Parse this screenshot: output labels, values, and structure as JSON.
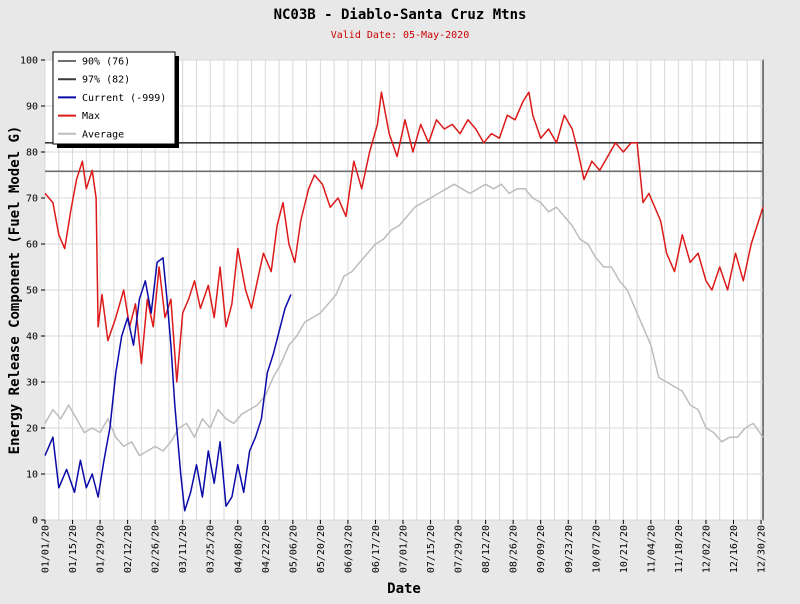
{
  "chart_data": {
    "type": "line",
    "title": "NC03B - Diablo-Santa Cruz Mtns",
    "subtitle": "Valid Date: 05-May-2020",
    "xlabel": "Date",
    "ylabel": "Energy Release Component (Fuel Model G)",
    "ylim": [
      0,
      100
    ],
    "yticks": [
      0,
      10,
      20,
      30,
      40,
      50,
      60,
      70,
      80,
      90,
      100
    ],
    "xlim": [
      "01/01/20",
      "12/31/20"
    ],
    "xticks": [
      "01/01/20",
      "01/15/20",
      "01/29/20",
      "02/12/20",
      "02/26/20",
      "03/11/20",
      "03/25/20",
      "04/08/20",
      "04/22/20",
      "05/06/20",
      "05/20/20",
      "06/03/20",
      "06/17/20",
      "07/01/20",
      "07/15/20",
      "07/29/20",
      "08/12/20",
      "08/26/20",
      "09/09/20",
      "09/23/20",
      "10/07/20",
      "10/21/20",
      "11/04/20",
      "11/18/20",
      "12/02/20",
      "12/16/20",
      "12/30/20"
    ],
    "grid": true,
    "legend_position": "top-left",
    "colors": {
      "background": "#e8e8e8",
      "plot_background": "#ffffff",
      "grid": "#d8d8d8",
      "title": "#000000",
      "subtitle": "#cc0000",
      "p90": "#6e6e6e",
      "p97": "#3a3a3a",
      "current": "#0a0aa8",
      "max": "#dd1a1a",
      "average": "#bdbdbd"
    },
    "series": [
      {
        "name": "90% (76)",
        "kind": "hline",
        "y": 75.8
      },
      {
        "name": "97% (82)",
        "kind": "hline",
        "y": 82
      },
      {
        "name": "Current (-999)",
        "kind": "line",
        "x": [
          "01/01/20",
          "01/05/20",
          "01/08/20",
          "01/12/20",
          "01/16/20",
          "01/19/20",
          "01/22/20",
          "01/25/20",
          "01/28/20",
          "01/31/20",
          "02/03/20",
          "02/06/20",
          "02/09/20",
          "02/12/20",
          "02/15/20",
          "02/18/20",
          "02/21/20",
          "02/24/20",
          "02/27/20",
          "03/01/20",
          "03/03/20",
          "03/05/20",
          "03/07/20",
          "03/10/20",
          "03/12/20",
          "03/15/20",
          "03/18/20",
          "03/21/20",
          "03/24/20",
          "03/27/20",
          "03/30/20",
          "04/02/20",
          "04/05/20",
          "04/08/20",
          "04/11/20",
          "04/14/20",
          "04/17/20",
          "04/20/20",
          "04/23/20",
          "04/26/20",
          "04/29/20",
          "05/02/20",
          "05/05/20"
        ],
        "values": [
          14,
          18,
          7,
          11,
          6,
          13,
          7,
          10,
          5,
          13,
          20,
          32,
          40,
          44,
          38,
          48,
          52,
          45,
          56,
          57,
          48,
          38,
          25,
          10,
          2,
          6,
          12,
          5,
          15,
          8,
          17,
          3,
          5,
          12,
          6,
          15,
          18,
          22,
          32,
          36,
          41,
          46,
          49
        ]
      },
      {
        "name": "Max",
        "kind": "line",
        "x": [
          "01/01/20",
          "01/05/20",
          "01/08/20",
          "01/11/20",
          "01/14/20",
          "01/17/20",
          "01/20/20",
          "01/22/20",
          "01/25/20",
          "01/27/20",
          "01/28/20",
          "01/30/20",
          "02/02/20",
          "02/06/20",
          "02/10/20",
          "02/13/20",
          "02/16/20",
          "02/19/20",
          "02/22/20",
          "02/25/20",
          "02/28/20",
          "03/02/20",
          "03/05/20",
          "03/08/20",
          "03/11/20",
          "03/14/20",
          "03/17/20",
          "03/20/20",
          "03/24/20",
          "03/27/20",
          "03/30/20",
          "04/02/20",
          "04/05/20",
          "04/08/20",
          "04/12/20",
          "04/15/20",
          "04/18/20",
          "04/21/20",
          "04/25/20",
          "04/28/20",
          "05/01/20",
          "05/04/20",
          "05/07/20",
          "05/10/20",
          "05/14/20",
          "05/17/20",
          "05/21/20",
          "05/25/20",
          "05/29/20",
          "06/02/20",
          "06/06/20",
          "06/10/20",
          "06/14/20",
          "06/18/20",
          "06/20/20",
          "06/24/20",
          "06/28/20",
          "07/02/20",
          "07/06/20",
          "07/10/20",
          "07/14/20",
          "07/18/20",
          "07/22/20",
          "07/26/20",
          "07/30/20",
          "08/03/20",
          "08/07/20",
          "08/11/20",
          "08/15/20",
          "08/19/20",
          "08/23/20",
          "08/27/20",
          "08/31/20",
          "09/03/20",
          "09/05/20",
          "09/09/20",
          "09/13/20",
          "09/17/20",
          "09/21/20",
          "09/25/20",
          "09/28/20",
          "10/01/20",
          "10/05/20",
          "10/09/20",
          "10/13/20",
          "10/17/20",
          "10/21/20",
          "10/25/20",
          "10/28/20",
          "10/31/20",
          "11/03/20",
          "11/06/20",
          "11/09/20",
          "11/12/20",
          "11/16/20",
          "11/20/20",
          "11/24/20",
          "11/28/20",
          "12/02/20",
          "12/05/20",
          "12/09/20",
          "12/13/20",
          "12/17/20",
          "12/21/20",
          "12/25/20",
          "12/28/20",
          "12/31/20"
        ],
        "values": [
          71,
          69,
          62,
          59,
          67,
          74,
          78,
          72,
          76,
          70,
          42,
          49,
          39,
          44,
          50,
          42,
          47,
          34,
          48,
          42,
          55,
          44,
          48,
          30,
          45,
          48,
          52,
          46,
          51,
          44,
          55,
          42,
          47,
          59,
          50,
          46,
          52,
          58,
          54,
          64,
          69,
          60,
          56,
          65,
          72,
          75,
          73,
          68,
          70,
          66,
          78,
          72,
          80,
          86,
          93,
          84,
          79,
          87,
          80,
          86,
          82,
          87,
          85,
          86,
          84,
          87,
          85,
          82,
          84,
          83,
          88,
          87,
          91,
          93,
          88,
          83,
          85,
          82,
          88,
          85,
          80,
          74,
          78,
          76,
          79,
          82,
          80,
          82,
          82,
          69,
          71,
          68,
          65,
          58,
          54,
          62,
          56,
          58,
          52,
          50,
          55,
          50,
          58,
          52,
          60,
          64,
          68
        ]
      },
      {
        "name": "Average",
        "kind": "line",
        "x": [
          "01/01/20",
          "01/05/20",
          "01/09/20",
          "01/13/20",
          "01/17/20",
          "01/21/20",
          "01/25/20",
          "01/29/20",
          "02/02/20",
          "02/06/20",
          "02/10/20",
          "02/14/20",
          "02/18/20",
          "02/22/20",
          "02/26/20",
          "03/01/20",
          "03/05/20",
          "03/09/20",
          "03/13/20",
          "03/17/20",
          "03/21/20",
          "03/25/20",
          "03/29/20",
          "04/02/20",
          "04/06/20",
          "04/10/20",
          "04/14/20",
          "04/18/20",
          "04/22/20",
          "04/26/20",
          "04/30/20",
          "05/04/20",
          "05/08/20",
          "05/12/20",
          "05/16/20",
          "05/20/20",
          "05/24/20",
          "05/28/20",
          "06/01/20",
          "06/05/20",
          "06/09/20",
          "06/13/20",
          "06/17/20",
          "06/21/20",
          "06/25/20",
          "06/29/20",
          "07/03/20",
          "07/07/20",
          "07/11/20",
          "07/15/20",
          "07/19/20",
          "07/23/20",
          "07/27/20",
          "07/31/20",
          "08/04/20",
          "08/08/20",
          "08/12/20",
          "08/16/20",
          "08/20/20",
          "08/24/20",
          "08/28/20",
          "09/01/20",
          "09/05/20",
          "09/09/20",
          "09/13/20",
          "09/17/20",
          "09/21/20",
          "09/25/20",
          "09/29/20",
          "10/03/20",
          "10/07/20",
          "10/11/20",
          "10/15/20",
          "10/19/20",
          "10/23/20",
          "10/27/20",
          "10/31/20",
          "11/04/20",
          "11/08/20",
          "11/12/20",
          "11/16/20",
          "11/20/20",
          "11/24/20",
          "11/28/20",
          "12/02/20",
          "12/06/20",
          "12/10/20",
          "12/14/20",
          "12/18/20",
          "12/22/20",
          "12/26/20",
          "12/31/20"
        ],
        "values": [
          21,
          24,
          22,
          25,
          22,
          19,
          20,
          19,
          22,
          18,
          16,
          17,
          14,
          15,
          16,
          15,
          17,
          20,
          21,
          18,
          22,
          20,
          24,
          22,
          21,
          23,
          24,
          25,
          27,
          31,
          34,
          38,
          40,
          43,
          44,
          45,
          47,
          49,
          53,
          54,
          56,
          58,
          60,
          61,
          63,
          64,
          66,
          68,
          69,
          70,
          71,
          72,
          73,
          72,
          71,
          72,
          73,
          72,
          73,
          71,
          72,
          72,
          70,
          69,
          67,
          68,
          66,
          64,
          61,
          60,
          57,
          55,
          55,
          52,
          50,
          46,
          42,
          38,
          31,
          30,
          29,
          28,
          25,
          24,
          20,
          19,
          17,
          18,
          18,
          20,
          21,
          18
        ]
      }
    ]
  }
}
